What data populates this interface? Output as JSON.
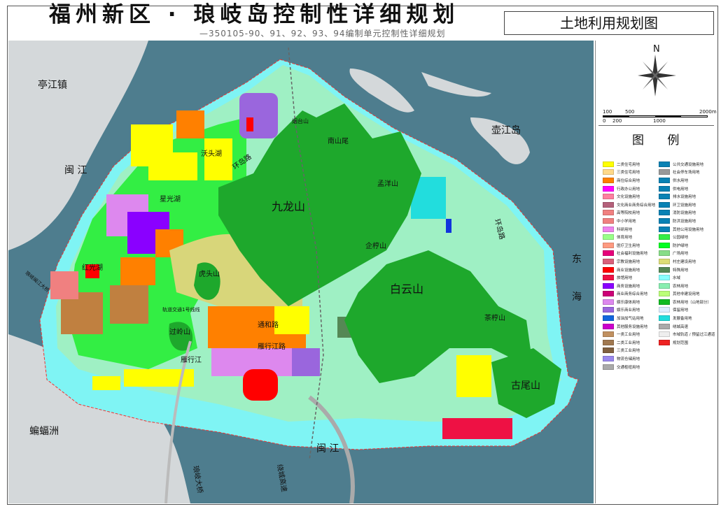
{
  "header": {
    "title": "福州新区 · 琅岐岛控制性详细规划",
    "subtitle": "—350105-90、91、92、93、94编制单元控制性详细规划",
    "map_name": "土地利用规划图"
  },
  "map_labels": {
    "tingjiang": "亭江镇",
    "minjiang_w": "闽  江",
    "bianfuzhou": "蝙蝠洲",
    "hujiangdao": "壶江岛",
    "donghai_1": "东",
    "donghai_2": "海",
    "minjiang_s": "闽  江",
    "jiulongshan": "九龙山",
    "baiyunshan": "白云山",
    "nanshanwei": "南山尾",
    "mengyangshan": "孟洋山",
    "qiqiaoshan": "企梈山",
    "chaqiaoshan": "茶梈山",
    "guweishan": "古尾山",
    "hutoushan": "虎头山",
    "guolingshan": "过岭山",
    "hongguanghu": "红光湖",
    "xingguanghu": "星光湖",
    "wotouhu": "沃头湖",
    "yanxingjiang": "雁行江",
    "yanxingjianglu": "雁行江路",
    "tonghelu": "通和路",
    "huandaolu_w": "环岛路",
    "huandaolu_e": "环岛路",
    "yantaishan": "烟台山",
    "langqidaqiao": "琅岐大桥",
    "raochenggaosu": "绕城高速",
    "langqiminjiangdaqiao": "琅岐闽江大桥",
    "metro": "轨道交通1号线线"
  },
  "legend": {
    "compass_label": "N",
    "scale_top": [
      "100",
      "500",
      "2000m"
    ],
    "scale_bottom": [
      "0",
      "200",
      "1000"
    ],
    "title": "图 例",
    "left": [
      {
        "label": "二类住宅用地",
        "color": "#ffff00"
      },
      {
        "label": "三类住宅用地",
        "color": "#ffd98a"
      },
      {
        "label": "商住综合用地",
        "color": "#ff8000"
      },
      {
        "label": "行政办公用地",
        "color": "#ff00ff"
      },
      {
        "label": "文化设施用地",
        "color": "#ff7fa0"
      },
      {
        "label": "文化商业商务综合用地",
        "color": "#b4607a"
      },
      {
        "label": "高等院校用地",
        "color": "#f08080"
      },
      {
        "label": "中小学用地",
        "color": "#f08080"
      },
      {
        "label": "科研用地",
        "color": "#ee82ee"
      },
      {
        "label": "体育用地",
        "color": "#99ff88"
      },
      {
        "label": "医疗卫生用地",
        "color": "#ff9a80"
      },
      {
        "label": "社会福利设施用地",
        "color": "#e6007a"
      },
      {
        "label": "宗教设施用地",
        "color": "#d9607a"
      },
      {
        "label": "商业设施用地",
        "color": "#ff0000"
      },
      {
        "label": "旅馆用地",
        "color": "#ee1144"
      },
      {
        "label": "商务设施用地",
        "color": "#8a00ff"
      },
      {
        "label": "商业商务综合用地",
        "color": "#cc0077"
      },
      {
        "label": "娱乐康体用地",
        "color": "#dd88ee"
      },
      {
        "label": "娱乐商业用地",
        "color": "#9a66dd"
      },
      {
        "label": "加油加气站用地",
        "color": "#1166dd"
      },
      {
        "label": "其他服务设施用地",
        "color": "#cc00cc"
      },
      {
        "label": "一类工业用地",
        "color": "#c09060"
      },
      {
        "label": "二类工业用地",
        "color": "#a07850"
      },
      {
        "label": "三类工业用地",
        "color": "#806040"
      },
      {
        "label": "物流仓储用地",
        "color": "#9a88ee"
      },
      {
        "label": "交通枢纽用地",
        "color": "#aaaaaa"
      }
    ],
    "right": [
      {
        "label": "公共交通设施用地",
        "color": "#0a82b4"
      },
      {
        "label": "社会停车场用地",
        "color": "#999999"
      },
      {
        "label": "供水用地",
        "color": "#0a82b4"
      },
      {
        "label": "供电用地",
        "color": "#0a82b4"
      },
      {
        "label": "排水设施用地",
        "color": "#0a82b4"
      },
      {
        "label": "环卫设施用地",
        "color": "#0a82b4"
      },
      {
        "label": "消防设施用地",
        "color": "#0a82b4"
      },
      {
        "label": "防洪设施用地",
        "color": "#0a82b4"
      },
      {
        "label": "其他公用设施用地",
        "color": "#0a82b4"
      },
      {
        "label": "公园绿地",
        "color": "#33ee44"
      },
      {
        "label": "防护绿地",
        "color": "#00ff22"
      },
      {
        "label": "广场用地",
        "color": "#88dd88"
      },
      {
        "label": "村庄建设用地",
        "color": "#dddd77"
      },
      {
        "label": "特殊用地",
        "color": "#558855"
      },
      {
        "label": "水域",
        "color": "#88ffff"
      },
      {
        "label": "农林用地",
        "color": "#88eeb0"
      },
      {
        "label": "其他非建设用地",
        "color": "#bbff77"
      },
      {
        "label": "农林用地（山地部分）",
        "color": "#11bb22"
      },
      {
        "label": "保留用地",
        "color": "#ddeeff"
      },
      {
        "label": "发展备用地",
        "color": "#22dddd"
      },
      {
        "label": "绕城高速",
        "color": "#aaaaaa"
      },
      {
        "label": "市域轨道 / 预留过江通道",
        "color": "#eeeeee"
      },
      {
        "label": "规划范围",
        "color": "#ee2222"
      }
    ]
  },
  "colors": {
    "water": "#4e7d8e",
    "land": "#d4d8da",
    "island": "#9ff0c4",
    "shore": "#7ff4f4",
    "mountain": "#1ea82c",
    "village": "#d8d67a"
  }
}
